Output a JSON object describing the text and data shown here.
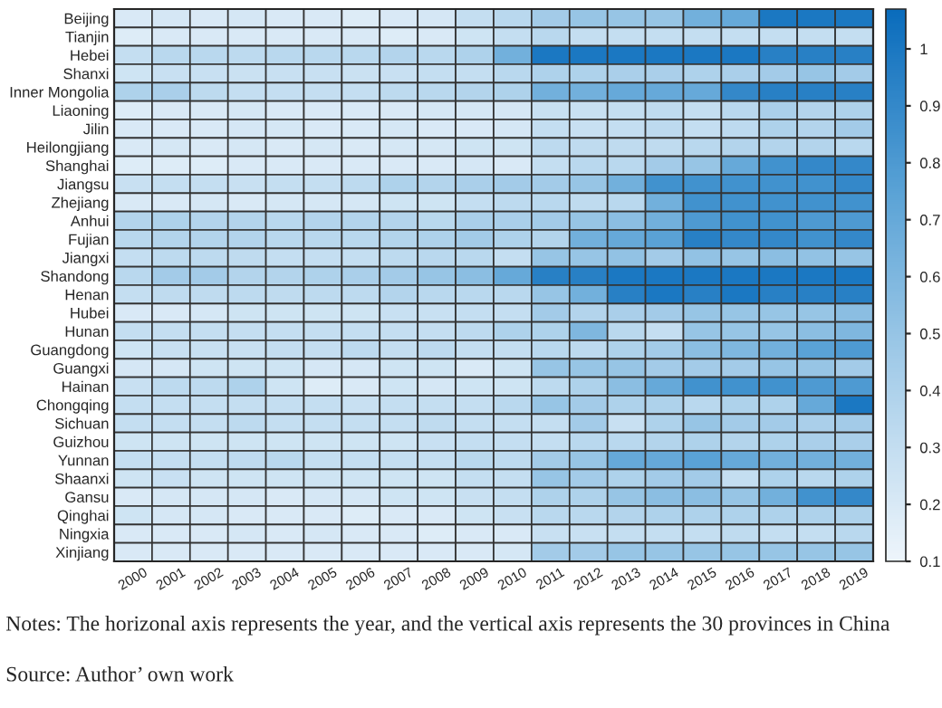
{
  "chart_data": {
    "type": "heatmap",
    "categories": [
      "2000",
      "2001",
      "2002",
      "2003",
      "2004",
      "2005",
      "2006",
      "2007",
      "2008",
      "2009",
      "2010",
      "2011",
      "2012",
      "2013",
      "2014",
      "2015",
      "2016",
      "2017",
      "2018",
      "2019"
    ],
    "y_categories": [
      "Beijing",
      "Tianjin",
      "Hebei",
      "Shanxi",
      "Inner Mongolia",
      "Liaoning",
      "Jilin",
      "Heilongjiang",
      "Shanghai",
      "Jiangsu",
      "Zhejiang",
      "Anhui",
      "Fujian",
      "Jiangxi",
      "Shandong",
      "Henan",
      "Hubei",
      "Hunan",
      "Guangdong",
      "Guangxi",
      "Hainan",
      "Chongqing",
      "Sichuan",
      "Guizhou",
      "Yunnan",
      "Shaanxi",
      "Gansu",
      "Qinghai",
      "Ningxia",
      "Xinjiang"
    ],
    "cells": [
      [
        0.2,
        0.22,
        0.2,
        0.22,
        0.2,
        0.2,
        0.18,
        0.2,
        0.22,
        0.3,
        0.35,
        0.45,
        0.5,
        0.5,
        0.5,
        0.65,
        0.7,
        1.0,
        1.0,
        1.0
      ],
      [
        0.18,
        0.2,
        0.2,
        0.2,
        0.2,
        0.2,
        0.2,
        0.18,
        0.2,
        0.25,
        0.3,
        0.35,
        0.3,
        0.3,
        0.3,
        0.3,
        0.3,
        0.3,
        0.3,
        0.3
      ],
      [
        0.3,
        0.35,
        0.35,
        0.33,
        0.35,
        0.35,
        0.35,
        0.38,
        0.35,
        0.4,
        0.65,
        1.0,
        1.0,
        1.0,
        1.0,
        1.0,
        1.0,
        0.95,
        0.95,
        0.95
      ],
      [
        0.25,
        0.28,
        0.28,
        0.27,
        0.28,
        0.28,
        0.27,
        0.28,
        0.3,
        0.3,
        0.35,
        0.4,
        0.4,
        0.42,
        0.42,
        0.4,
        0.42,
        0.45,
        0.5,
        0.45
      ],
      [
        0.4,
        0.42,
        0.33,
        0.3,
        0.3,
        0.3,
        0.3,
        0.33,
        0.35,
        0.38,
        0.4,
        0.65,
        0.65,
        0.7,
        0.7,
        0.7,
        0.9,
        0.95,
        0.95,
        0.95
      ],
      [
        0.18,
        0.2,
        0.2,
        0.22,
        0.2,
        0.2,
        0.2,
        0.2,
        0.22,
        0.22,
        0.22,
        0.28,
        0.28,
        0.3,
        0.32,
        0.3,
        0.35,
        0.42,
        0.38,
        0.4
      ],
      [
        0.2,
        0.2,
        0.2,
        0.22,
        0.22,
        0.2,
        0.2,
        0.22,
        0.2,
        0.2,
        0.22,
        0.3,
        0.28,
        0.3,
        0.33,
        0.3,
        0.33,
        0.4,
        0.38,
        0.45
      ],
      [
        0.2,
        0.22,
        0.2,
        0.22,
        0.2,
        0.22,
        0.2,
        0.22,
        0.22,
        0.25,
        0.25,
        0.33,
        0.32,
        0.32,
        0.32,
        0.35,
        0.38,
        0.38,
        0.38,
        0.35
      ],
      [
        0.18,
        0.18,
        0.18,
        0.2,
        0.2,
        0.2,
        0.2,
        0.2,
        0.2,
        0.22,
        0.2,
        0.3,
        0.35,
        0.35,
        0.45,
        0.5,
        0.7,
        0.85,
        0.9,
        0.9
      ],
      [
        0.28,
        0.3,
        0.3,
        0.28,
        0.3,
        0.3,
        0.33,
        0.4,
        0.38,
        0.42,
        0.45,
        0.45,
        0.5,
        0.65,
        0.85,
        0.85,
        0.85,
        0.85,
        0.85,
        0.9
      ],
      [
        0.2,
        0.2,
        0.22,
        0.2,
        0.22,
        0.22,
        0.22,
        0.25,
        0.25,
        0.3,
        0.33,
        0.35,
        0.32,
        0.35,
        0.65,
        0.85,
        0.85,
        0.85,
        0.85,
        0.85
      ],
      [
        0.38,
        0.4,
        0.38,
        0.38,
        0.35,
        0.38,
        0.38,
        0.38,
        0.35,
        0.42,
        0.42,
        0.45,
        0.5,
        0.55,
        0.65,
        0.8,
        0.85,
        0.85,
        0.8,
        0.8
      ],
      [
        0.35,
        0.38,
        0.38,
        0.38,
        0.35,
        0.35,
        0.35,
        0.38,
        0.4,
        0.45,
        0.4,
        0.38,
        0.65,
        0.7,
        0.75,
        0.95,
        0.9,
        0.9,
        0.85,
        0.9
      ],
      [
        0.3,
        0.33,
        0.33,
        0.32,
        0.3,
        0.3,
        0.3,
        0.33,
        0.35,
        0.35,
        0.3,
        0.5,
        0.5,
        0.52,
        0.45,
        0.52,
        0.5,
        0.55,
        0.52,
        0.5
      ],
      [
        0.35,
        0.45,
        0.45,
        0.38,
        0.38,
        0.4,
        0.42,
        0.45,
        0.5,
        0.55,
        0.7,
        0.95,
        0.95,
        1.0,
        1.0,
        1.0,
        1.0,
        1.0,
        1.0,
        1.0
      ],
      [
        0.3,
        0.32,
        0.32,
        0.33,
        0.32,
        0.33,
        0.33,
        0.38,
        0.35,
        0.35,
        0.35,
        0.5,
        0.65,
        0.95,
        1.0,
        0.95,
        1.0,
        0.95,
        0.95,
        0.95
      ],
      [
        0.2,
        0.2,
        0.22,
        0.25,
        0.25,
        0.25,
        0.25,
        0.28,
        0.28,
        0.3,
        0.3,
        0.45,
        0.38,
        0.42,
        0.45,
        0.5,
        0.5,
        0.5,
        0.5,
        0.55
      ],
      [
        0.3,
        0.3,
        0.3,
        0.3,
        0.3,
        0.3,
        0.3,
        0.3,
        0.3,
        0.33,
        0.4,
        0.4,
        0.6,
        0.35,
        0.3,
        0.5,
        0.5,
        0.5,
        0.55,
        0.6
      ],
      [
        0.25,
        0.28,
        0.28,
        0.28,
        0.3,
        0.3,
        0.33,
        0.3,
        0.33,
        0.3,
        0.3,
        0.35,
        0.33,
        0.4,
        0.45,
        0.55,
        0.6,
        0.65,
        0.75,
        0.8
      ],
      [
        0.22,
        0.22,
        0.25,
        0.25,
        0.25,
        0.22,
        0.22,
        0.25,
        0.25,
        0.2,
        0.25,
        0.5,
        0.5,
        0.5,
        0.45,
        0.45,
        0.45,
        0.5,
        0.5,
        0.45
      ],
      [
        0.28,
        0.33,
        0.33,
        0.4,
        0.25,
        0.18,
        0.2,
        0.25,
        0.22,
        0.25,
        0.25,
        0.33,
        0.4,
        0.55,
        0.7,
        0.85,
        0.85,
        0.85,
        0.8,
        0.8
      ],
      [
        0.3,
        0.3,
        0.3,
        0.3,
        0.3,
        0.3,
        0.28,
        0.3,
        0.3,
        0.3,
        0.35,
        0.5,
        0.45,
        0.4,
        0.4,
        0.35,
        0.4,
        0.4,
        0.7,
        1.0
      ],
      [
        0.3,
        0.3,
        0.3,
        0.33,
        0.3,
        0.3,
        0.3,
        0.3,
        0.32,
        0.3,
        0.3,
        0.3,
        0.45,
        0.28,
        0.4,
        0.5,
        0.45,
        0.45,
        0.42,
        0.45
      ],
      [
        0.25,
        0.25,
        0.25,
        0.25,
        0.25,
        0.25,
        0.25,
        0.25,
        0.28,
        0.3,
        0.3,
        0.3,
        0.35,
        0.35,
        0.38,
        0.4,
        0.38,
        0.4,
        0.42,
        0.42
      ],
      [
        0.3,
        0.3,
        0.3,
        0.32,
        0.35,
        0.3,
        0.3,
        0.3,
        0.3,
        0.35,
        0.33,
        0.45,
        0.5,
        0.7,
        0.7,
        0.75,
        0.7,
        0.65,
        0.65,
        0.65
      ],
      [
        0.25,
        0.28,
        0.25,
        0.25,
        0.25,
        0.25,
        0.25,
        0.25,
        0.25,
        0.3,
        0.3,
        0.5,
        0.45,
        0.4,
        0.45,
        0.45,
        0.3,
        0.4,
        0.35,
        0.4
      ],
      [
        0.2,
        0.22,
        0.22,
        0.22,
        0.2,
        0.22,
        0.22,
        0.25,
        0.25,
        0.28,
        0.3,
        0.4,
        0.4,
        0.5,
        0.55,
        0.55,
        0.5,
        0.65,
        0.85,
        0.9
      ],
      [
        0.25,
        0.22,
        0.22,
        0.2,
        0.2,
        0.2,
        0.18,
        0.2,
        0.2,
        0.25,
        0.28,
        0.35,
        0.35,
        0.38,
        0.4,
        0.4,
        0.4,
        0.4,
        0.4,
        0.4
      ],
      [
        0.2,
        0.2,
        0.2,
        0.22,
        0.2,
        0.22,
        0.2,
        0.2,
        0.18,
        0.2,
        0.2,
        0.28,
        0.28,
        0.3,
        0.3,
        0.3,
        0.32,
        0.3,
        0.3,
        0.35
      ],
      [
        0.2,
        0.2,
        0.2,
        0.2,
        0.2,
        0.2,
        0.2,
        0.2,
        0.2,
        0.2,
        0.22,
        0.45,
        0.45,
        0.5,
        0.5,
        0.5,
        0.5,
        0.5,
        0.5,
        0.5
      ]
    ],
    "clim": [
      0.1,
      1.07
    ],
    "cticks": [
      0.1,
      0.2,
      0.3,
      0.4,
      0.5,
      0.6,
      0.7,
      0.8,
      0.9,
      1
    ],
    "annotations": [
      "Notes: The horizonal axis represents the year, and the vertical axis represents the 30 provinces in China",
      "Source: Author’ own work"
    ]
  }
}
